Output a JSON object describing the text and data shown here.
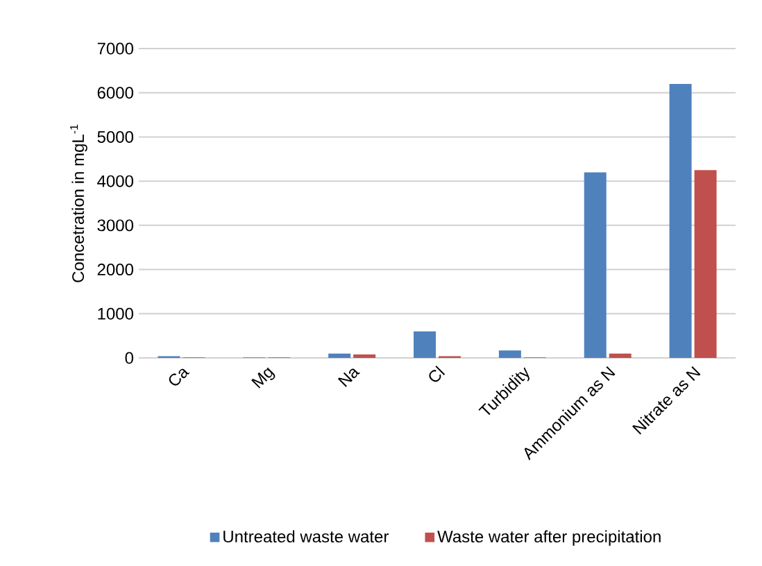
{
  "chart_data": {
    "type": "bar",
    "ylabel": "Concetration in mgL$^{-1}$",
    "categories": [
      "Ca",
      "Mg",
      "Na",
      "Cl",
      "Turbidity",
      "Ammonium as N",
      "Nitrate as N"
    ],
    "series": [
      {
        "name": "Untreated waste water",
        "color": "#4f81bd",
        "values": [
          40,
          10,
          100,
          600,
          170,
          4200,
          6200
        ]
      },
      {
        "name": "Waste water after precipitation",
        "color": "#c0504d",
        "values": [
          10,
          10,
          80,
          40,
          10,
          100,
          4250
        ]
      }
    ],
    "ylim": [
      0,
      7000
    ],
    "yticks": [
      0,
      1000,
      2000,
      3000,
      4000,
      5000,
      6000,
      7000
    ],
    "grid": "y",
    "legend": "bottom"
  }
}
